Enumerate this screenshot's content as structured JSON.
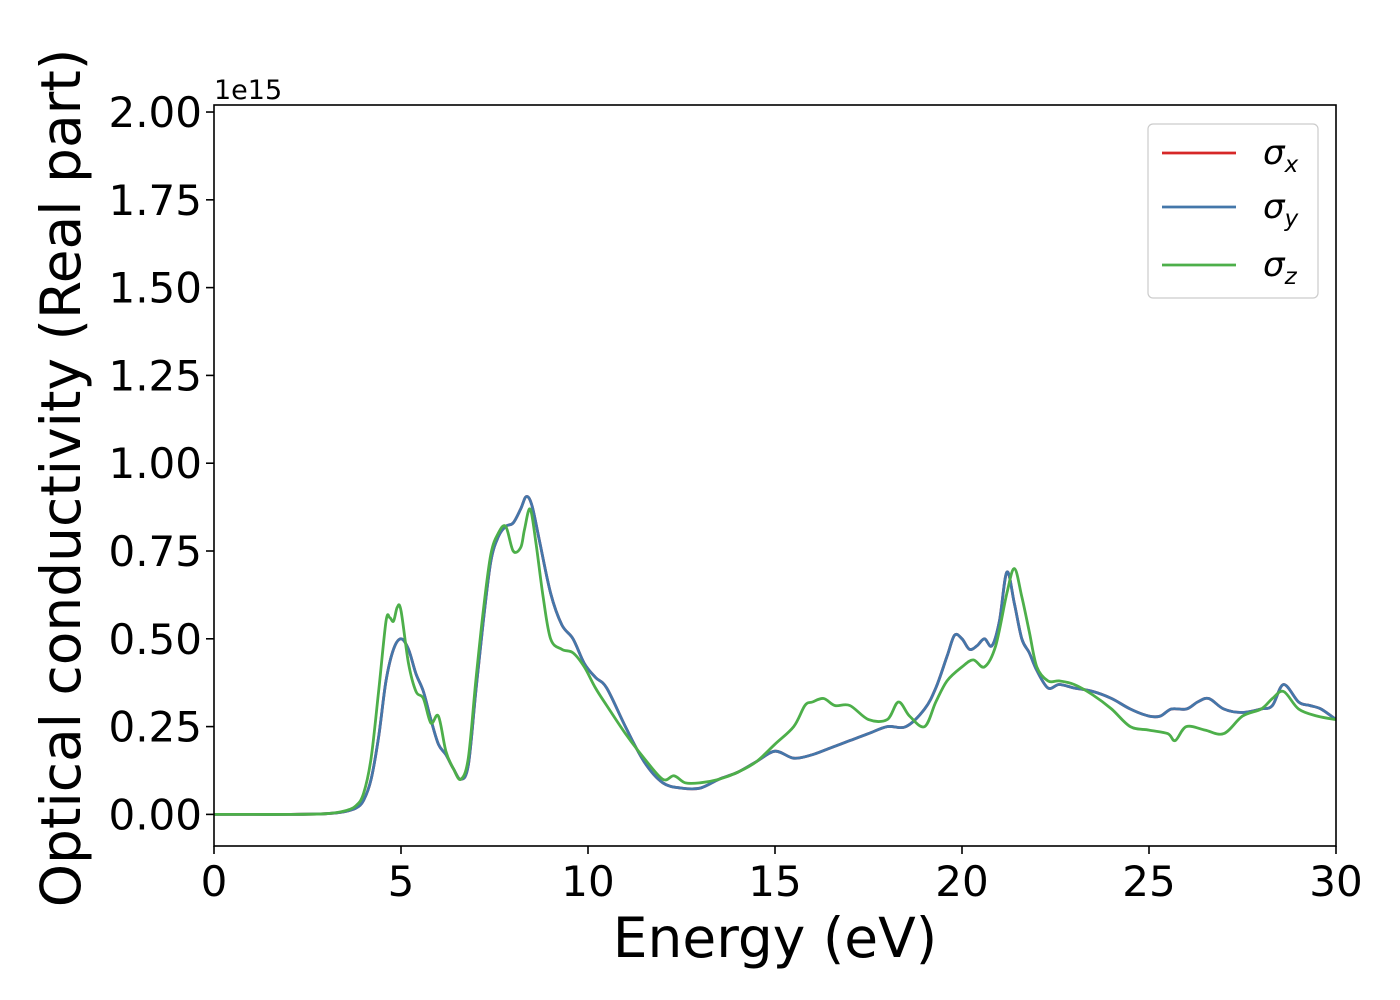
{
  "chart_data": {
    "type": "line",
    "title": "",
    "xlabel": "Energy (eV)",
    "ylabel": "Optical conductivity (Real part)",
    "y_offset_label": "1e15",
    "xlim": [
      0,
      30
    ],
    "ylim": [
      -0.09,
      2.02
    ],
    "x_ticks": [
      0,
      5,
      10,
      15,
      20,
      25,
      30
    ],
    "x_tick_labels": [
      "0",
      "5",
      "10",
      "15",
      "20",
      "25",
      "30"
    ],
    "y_ticks": [
      0.0,
      0.25,
      0.5,
      0.75,
      1.0,
      1.25,
      1.5,
      1.75,
      2.0
    ],
    "y_tick_labels": [
      "0.00",
      "0.25",
      "0.50",
      "0.75",
      "1.00",
      "1.25",
      "1.50",
      "1.75",
      "2.00"
    ],
    "grid": false,
    "legend_position": "top-right",
    "series": [
      {
        "name": "σ",
        "subscript": "x",
        "color": "#d62728",
        "x": [
          0,
          1,
          2,
          3,
          3.5,
          3.8,
          4.0,
          4.2,
          4.4,
          4.6,
          4.8,
          5.0,
          5.2,
          5.4,
          5.6,
          5.8,
          6.0,
          6.2,
          6.4,
          6.6,
          6.8,
          7.0,
          7.2,
          7.4,
          7.6,
          7.8,
          8.0,
          8.2,
          8.35,
          8.5,
          8.7,
          9.0,
          9.3,
          9.6,
          9.9,
          10.2,
          10.5,
          11.0,
          11.5,
          12.0,
          12.5,
          13.0,
          13.5,
          14.0,
          14.5,
          15.0,
          15.5,
          16.0,
          16.5,
          17.0,
          17.5,
          18.0,
          18.5,
          19.0,
          19.3,
          19.6,
          19.8,
          20.0,
          20.2,
          20.4,
          20.6,
          20.8,
          21.0,
          21.2,
          21.4,
          21.6,
          21.8,
          22.0,
          22.3,
          22.6,
          23.0,
          23.5,
          24.0,
          24.5,
          25.0,
          25.3,
          25.6,
          26.0,
          26.3,
          26.6,
          27.0,
          27.5,
          28.0,
          28.3,
          28.6,
          29.0,
          29.3,
          29.6,
          30.0
        ],
        "values": [
          0.0,
          0.0,
          0.0,
          0.002,
          0.008,
          0.018,
          0.04,
          0.1,
          0.22,
          0.38,
          0.47,
          0.5,
          0.47,
          0.4,
          0.35,
          0.27,
          0.2,
          0.17,
          0.13,
          0.1,
          0.14,
          0.35,
          0.55,
          0.72,
          0.79,
          0.82,
          0.83,
          0.87,
          0.905,
          0.88,
          0.78,
          0.63,
          0.54,
          0.5,
          0.43,
          0.39,
          0.36,
          0.25,
          0.15,
          0.09,
          0.075,
          0.075,
          0.1,
          0.12,
          0.15,
          0.18,
          0.16,
          0.17,
          0.19,
          0.21,
          0.23,
          0.25,
          0.25,
          0.3,
          0.36,
          0.45,
          0.51,
          0.5,
          0.47,
          0.48,
          0.5,
          0.48,
          0.55,
          0.69,
          0.6,
          0.5,
          0.46,
          0.41,
          0.36,
          0.37,
          0.36,
          0.35,
          0.33,
          0.3,
          0.28,
          0.28,
          0.3,
          0.3,
          0.32,
          0.33,
          0.3,
          0.29,
          0.3,
          0.31,
          0.37,
          0.32,
          0.31,
          0.3,
          0.27
        ]
      },
      {
        "name": "σ",
        "subscript": "y",
        "color": "#4477aa",
        "x": [
          0,
          1,
          2,
          3,
          3.5,
          3.8,
          4.0,
          4.2,
          4.4,
          4.6,
          4.8,
          5.0,
          5.2,
          5.4,
          5.6,
          5.8,
          6.0,
          6.2,
          6.4,
          6.6,
          6.8,
          7.0,
          7.2,
          7.4,
          7.6,
          7.8,
          8.0,
          8.2,
          8.35,
          8.5,
          8.7,
          9.0,
          9.3,
          9.6,
          9.9,
          10.2,
          10.5,
          11.0,
          11.5,
          12.0,
          12.5,
          13.0,
          13.5,
          14.0,
          14.5,
          15.0,
          15.5,
          16.0,
          16.5,
          17.0,
          17.5,
          18.0,
          18.5,
          19.0,
          19.3,
          19.6,
          19.8,
          20.0,
          20.2,
          20.4,
          20.6,
          20.8,
          21.0,
          21.2,
          21.4,
          21.6,
          21.8,
          22.0,
          22.3,
          22.6,
          23.0,
          23.5,
          24.0,
          24.5,
          25.0,
          25.3,
          25.6,
          26.0,
          26.3,
          26.6,
          27.0,
          27.5,
          28.0,
          28.3,
          28.6,
          29.0,
          29.3,
          29.6,
          30.0
        ],
        "values": [
          0.0,
          0.0,
          0.0,
          0.002,
          0.008,
          0.018,
          0.04,
          0.1,
          0.22,
          0.38,
          0.47,
          0.5,
          0.47,
          0.4,
          0.35,
          0.27,
          0.2,
          0.17,
          0.13,
          0.1,
          0.14,
          0.35,
          0.55,
          0.72,
          0.79,
          0.82,
          0.83,
          0.87,
          0.905,
          0.88,
          0.78,
          0.63,
          0.54,
          0.5,
          0.43,
          0.39,
          0.36,
          0.25,
          0.15,
          0.09,
          0.075,
          0.075,
          0.1,
          0.12,
          0.15,
          0.18,
          0.16,
          0.17,
          0.19,
          0.21,
          0.23,
          0.25,
          0.25,
          0.3,
          0.36,
          0.45,
          0.51,
          0.5,
          0.47,
          0.48,
          0.5,
          0.48,
          0.55,
          0.69,
          0.6,
          0.5,
          0.46,
          0.41,
          0.36,
          0.37,
          0.36,
          0.35,
          0.33,
          0.3,
          0.28,
          0.28,
          0.3,
          0.3,
          0.32,
          0.33,
          0.3,
          0.29,
          0.3,
          0.31,
          0.37,
          0.32,
          0.31,
          0.3,
          0.27
        ]
      },
      {
        "name": "σ",
        "subscript": "z",
        "color": "#4daf4a",
        "x": [
          0,
          1,
          2,
          3,
          3.5,
          3.8,
          4.0,
          4.2,
          4.4,
          4.6,
          4.7,
          4.8,
          4.9,
          5.0,
          5.2,
          5.4,
          5.6,
          5.8,
          6.0,
          6.2,
          6.4,
          6.6,
          6.8,
          7.0,
          7.2,
          7.4,
          7.6,
          7.8,
          8.0,
          8.2,
          8.3,
          8.45,
          8.6,
          8.8,
          9.0,
          9.3,
          9.6,
          9.9,
          10.2,
          10.5,
          11.0,
          11.5,
          12.0,
          12.3,
          12.6,
          13.0,
          13.5,
          14.0,
          14.5,
          15.0,
          15.5,
          15.8,
          16.0,
          16.3,
          16.6,
          17.0,
          17.5,
          18.0,
          18.3,
          18.6,
          19.0,
          19.3,
          19.6,
          20.0,
          20.3,
          20.6,
          20.9,
          21.2,
          21.4,
          21.6,
          21.8,
          22.0,
          22.3,
          22.6,
          23.0,
          23.5,
          24.0,
          24.5,
          25.0,
          25.5,
          25.7,
          26.0,
          26.5,
          27.0,
          27.5,
          28.0,
          28.3,
          28.6,
          29.0,
          29.5,
          30.0
        ],
        "values": [
          0.0,
          0.0,
          0.0,
          0.002,
          0.01,
          0.025,
          0.06,
          0.16,
          0.35,
          0.55,
          0.56,
          0.55,
          0.59,
          0.58,
          0.43,
          0.35,
          0.33,
          0.26,
          0.28,
          0.18,
          0.13,
          0.1,
          0.16,
          0.38,
          0.58,
          0.74,
          0.8,
          0.82,
          0.75,
          0.76,
          0.81,
          0.87,
          0.78,
          0.62,
          0.5,
          0.47,
          0.46,
          0.42,
          0.36,
          0.31,
          0.23,
          0.16,
          0.1,
          0.11,
          0.09,
          0.09,
          0.1,
          0.12,
          0.15,
          0.2,
          0.25,
          0.31,
          0.32,
          0.33,
          0.31,
          0.31,
          0.27,
          0.27,
          0.32,
          0.28,
          0.25,
          0.32,
          0.38,
          0.42,
          0.44,
          0.42,
          0.48,
          0.63,
          0.7,
          0.62,
          0.52,
          0.42,
          0.38,
          0.38,
          0.37,
          0.34,
          0.3,
          0.25,
          0.24,
          0.23,
          0.21,
          0.25,
          0.24,
          0.23,
          0.28,
          0.3,
          0.33,
          0.35,
          0.3,
          0.28,
          0.27
        ]
      }
    ]
  }
}
